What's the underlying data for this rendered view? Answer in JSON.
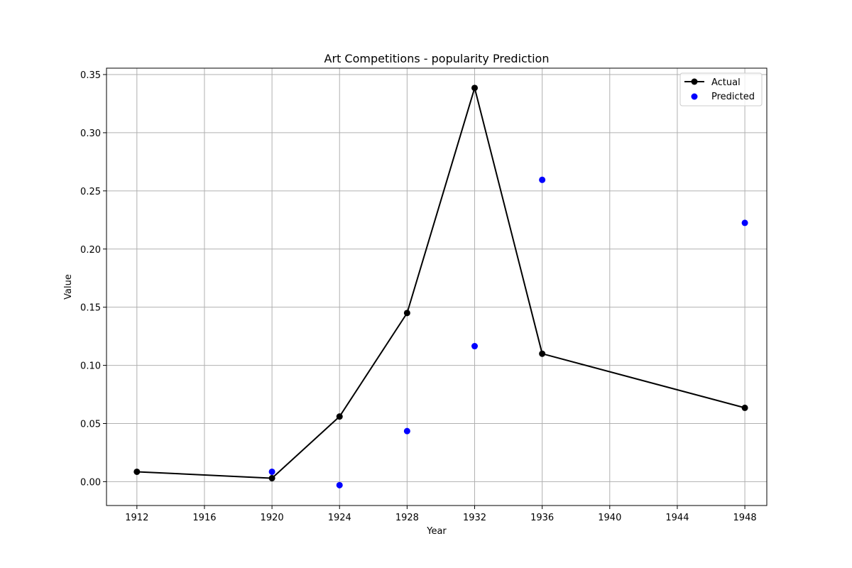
{
  "chart_data": {
    "type": "line",
    "title": "Art Competitions - popularity Prediction",
    "xlabel": "Year",
    "ylabel": "Value",
    "xlim": [
      1910.2,
      1949.3
    ],
    "ylim": [
      -0.0205,
      0.3555
    ],
    "xticks": [
      1912,
      1916,
      1920,
      1924,
      1928,
      1932,
      1936,
      1940,
      1944,
      1948
    ],
    "yticks": [
      0.0,
      0.05,
      0.1,
      0.15,
      0.2,
      0.25,
      0.3,
      0.35
    ],
    "ytick_labels": [
      "0.00",
      "0.05",
      "0.10",
      "0.15",
      "0.20",
      "0.25",
      "0.30",
      "0.35"
    ],
    "grid": true,
    "legend_position": "top-right",
    "series": [
      {
        "name": "Actual",
        "kind": "line-with-markers",
        "color": "#000000",
        "x": [
          1912,
          1920,
          1924,
          1928,
          1932,
          1936,
          1948
        ],
        "y": [
          0.0085,
          0.003,
          0.056,
          0.145,
          0.3385,
          0.11,
          0.0635
        ]
      },
      {
        "name": "Predicted",
        "kind": "scatter",
        "color": "#0000ff",
        "x": [
          1920,
          1924,
          1928,
          1932,
          1936,
          1948
        ],
        "y": [
          0.0085,
          -0.003,
          0.0435,
          0.1165,
          0.2595,
          0.2225
        ]
      }
    ]
  }
}
